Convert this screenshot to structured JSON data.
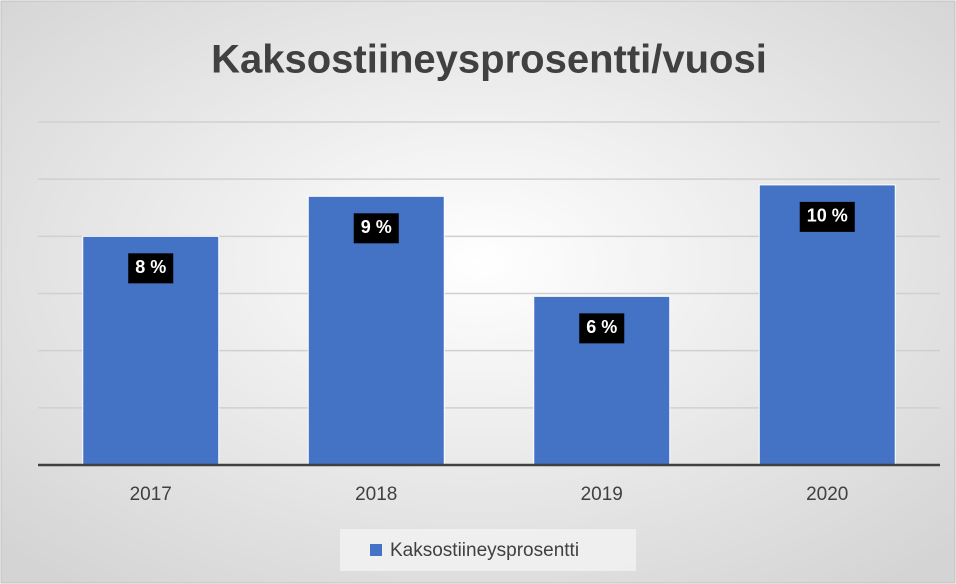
{
  "chart_data": {
    "type": "bar",
    "title": "Kaksostiineysprosentti/vuosi",
    "categories": [
      "2017",
      "2018",
      "2019",
      "2020"
    ],
    "series": [
      {
        "name": "Kaksostiineysprosentti",
        "color": "#4472c4",
        "values": [
          8.0,
          9.4,
          5.9,
          9.8
        ],
        "value_labels": [
          "8 %",
          "9 %",
          "6 %",
          "10 %"
        ]
      }
    ],
    "ylim": [
      0,
      12
    ],
    "yticks": [
      0,
      2,
      4,
      6,
      8,
      10,
      12
    ],
    "grid": true,
    "legend": "bottom"
  }
}
